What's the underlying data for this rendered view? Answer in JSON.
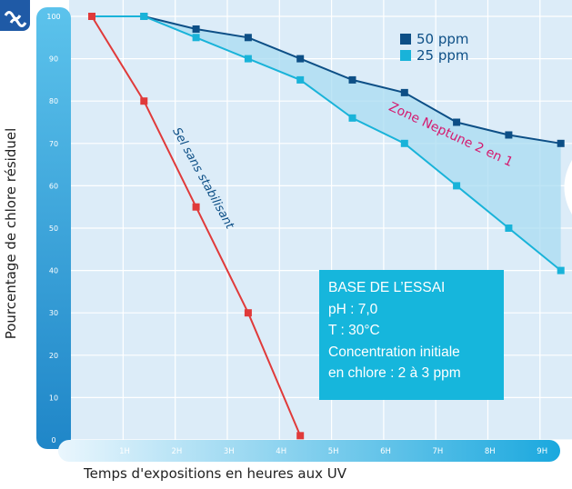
{
  "y_axis_title": "Pourcentage de chlore résiduel",
  "x_axis_title": "Temps d'expositions en heures aux UV",
  "legend": [
    {
      "label": "50 ppm",
      "color": "#0d4f86"
    },
    {
      "label": "25 ppm",
      "color": "#19b3d9"
    }
  ],
  "info_box": {
    "lines": [
      "BASE DE L’ESSAI",
      "pH : 7,0",
      "T : 30°C",
      "Concentration initiale",
      "en chlore : 2 à 3 ppm"
    ]
  },
  "annotations": {
    "sel": "Sel sans stabilisant",
    "zone": "Zone Neptune 2 en 1"
  },
  "colors": {
    "sel_line": "#e03a3a",
    "zone_fill": "#a9dcf2",
    "plot_bg": "#dcecf8",
    "axis_strip": "#2a9fd8"
  },
  "chart_data": {
    "type": "line",
    "x_ticks": [
      "1H",
      "2H",
      "3H",
      "4H",
      "5H",
      "6H",
      "7H",
      "8H",
      "9H"
    ],
    "y_ticks": [
      "0",
      "10",
      "20",
      "30",
      "40",
      "50",
      "60",
      "70",
      "80",
      "90",
      "100"
    ],
    "xlim": [
      0,
      9.4
    ],
    "ylim": [
      0,
      100
    ],
    "series": [
      {
        "name": "50 ppm",
        "color": "#0d4f86",
        "x": [
          0.4,
          1.4,
          2.4,
          3.4,
          4.4,
          5.4,
          6.4,
          7.4,
          8.4,
          9.4
        ],
        "y": [
          100,
          100,
          97,
          95,
          90,
          85,
          82,
          75,
          72,
          70
        ]
      },
      {
        "name": "25 ppm",
        "color": "#19b3d9",
        "x": [
          0.4,
          1.4,
          2.4,
          3.4,
          4.4,
          5.4,
          6.4,
          7.4,
          8.4,
          9.4
        ],
        "y": [
          100,
          100,
          95,
          90,
          85,
          76,
          70,
          60,
          50,
          40
        ]
      },
      {
        "name": "",
        "color": "#e03a3a",
        "x": [
          0.4,
          1.4,
          2.4,
          3.4,
          4.4
        ],
        "y": [
          100,
          80,
          55,
          30,
          1
        ]
      }
    ]
  }
}
